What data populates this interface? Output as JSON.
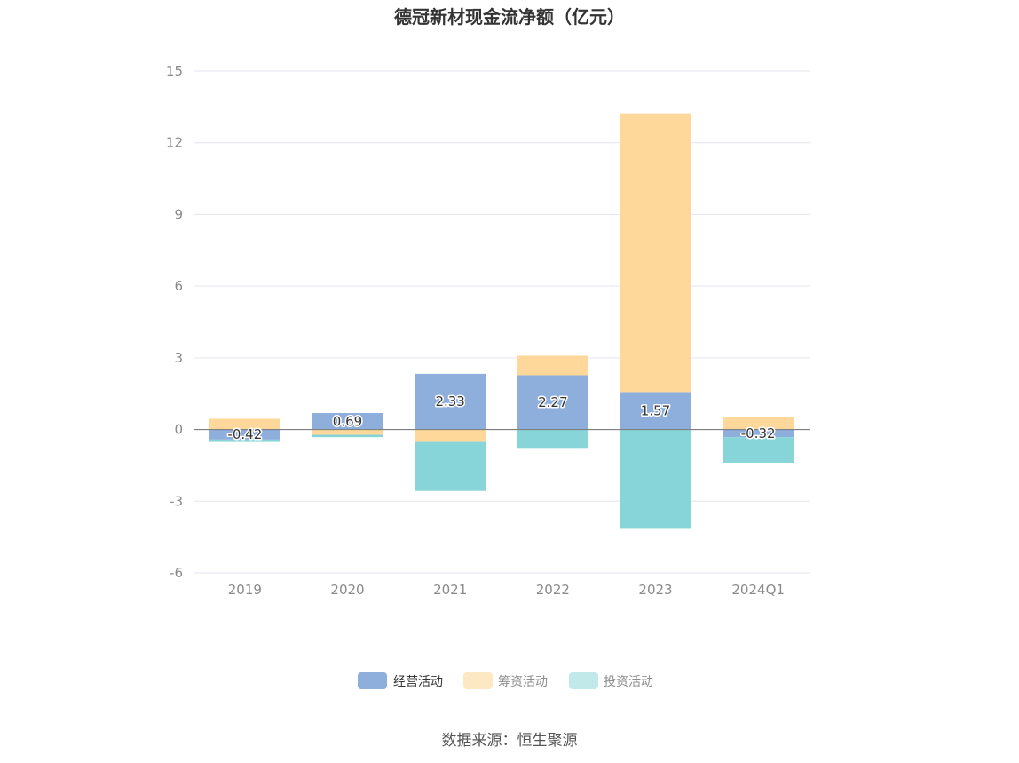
{
  "chart_data": {
    "type": "bar",
    "stacked": true,
    "title": "德冠新材现金流净额（亿元）",
    "categories": [
      "2019",
      "2020",
      "2021",
      "2022",
      "2023",
      "2024Q1"
    ],
    "series": [
      {
        "name": "经营活动",
        "values": [
          -0.42,
          0.69,
          2.33,
          2.27,
          1.57,
          -0.32
        ],
        "color": "#8eaedb"
      },
      {
        "name": "筹资活动",
        "values": [
          0.45,
          -0.22,
          -0.52,
          0.82,
          11.66,
          0.52
        ],
        "color": "#fdd89a"
      },
      {
        "name": "投资活动",
        "values": [
          -0.1,
          -0.1,
          -2.05,
          -0.77,
          -4.12,
          -1.07
        ],
        "color": "#87d5d8"
      }
    ],
    "data_labels": [
      "-0.42",
      "0.69",
      "2.33",
      "2.27",
      "1.57",
      "-0.32"
    ],
    "yticks": [
      "15",
      "12",
      "9",
      "6",
      "3",
      "0",
      "-3",
      "-6"
    ],
    "ylim": [
      -6,
      15
    ],
    "grid": true,
    "legend_position": "bottom",
    "legend_inactive_colors": [
      "#fde8c4",
      "#c2e9ea"
    ],
    "source": "数据来源：恒生聚源"
  }
}
